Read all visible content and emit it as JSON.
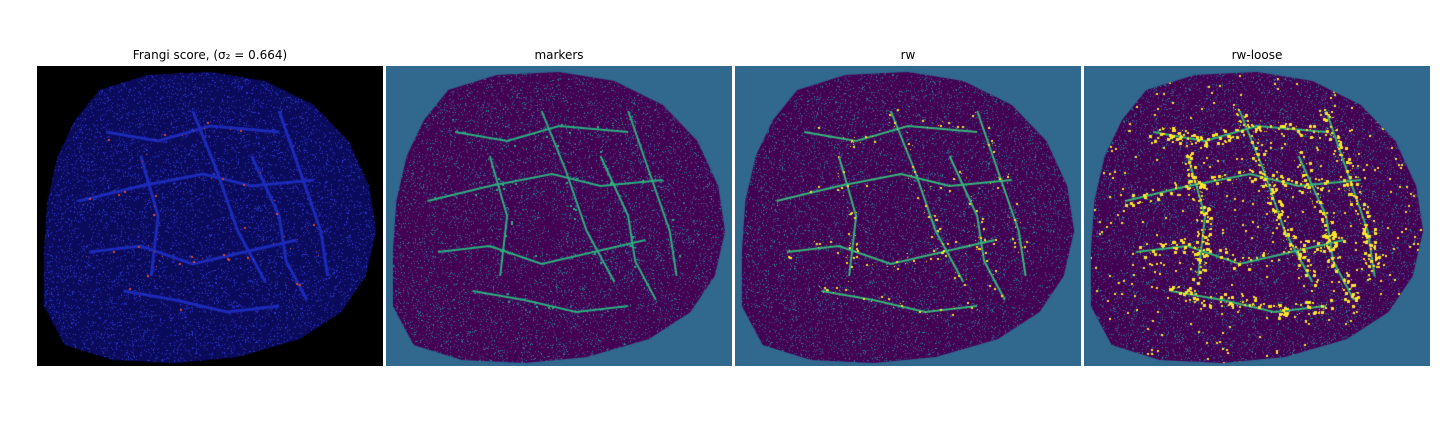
{
  "figure": {
    "panels": [
      {
        "title": "Frangi score, (σ₂ = 0.664)",
        "style": "frangi",
        "background": "#000000",
        "texture": "#1a1f9e",
        "highlight": "#d94a2b"
      },
      {
        "title": "markers",
        "style": "markers",
        "background": "#30688e",
        "texture": "#440154",
        "highlight": "#2ab07f"
      },
      {
        "title": "rw",
        "style": "rw",
        "background": "#30688e",
        "texture": "#440154",
        "highlight": "#fde725"
      },
      {
        "title": "rw-loose",
        "style": "rw-loose",
        "background": "#30688e",
        "texture": "#440154",
        "highlight": "#fde725"
      }
    ]
  }
}
